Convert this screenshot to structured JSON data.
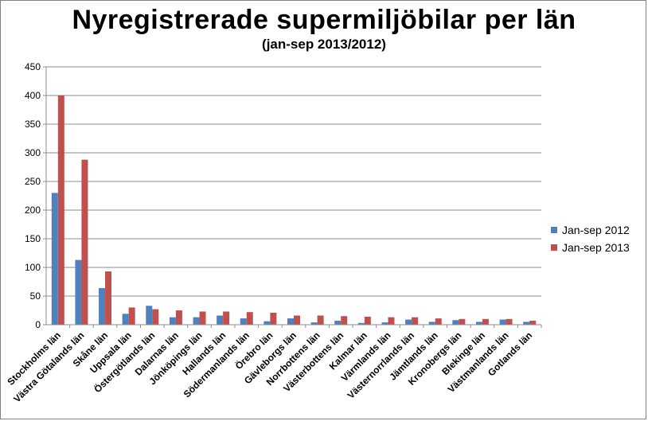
{
  "chart_data": {
    "type": "bar",
    "title": "Nyregistrerade supermiljöbilar per län",
    "subtitle": "(jan-sep 2013/2012)",
    "categories": [
      "Stockholms län",
      "Västra Götalands län",
      "Skåne län",
      "Uppsala län",
      "Östergötlands län",
      "Dalarnas län",
      "Jönköpings län",
      "Hallands län",
      "Södermanlands län",
      "Örebro län",
      "Gävleborgs län",
      "Norrbottens län",
      "Västerbottens län",
      "Kalmar län",
      "Värmlands län",
      "Västernorrlands län",
      "Jämtlands län",
      "Kronobergs län",
      "Blekinge län",
      "Västmanlands län",
      "Gotlands län"
    ],
    "series": [
      {
        "name": "Jan-sep 2012",
        "color": "#4f81bd",
        "values": [
          230,
          113,
          64,
          19,
          33,
          13,
          13,
          16,
          11,
          6,
          11,
          4,
          7,
          3,
          4,
          9,
          5,
          8,
          5,
          9,
          5
        ]
      },
      {
        "name": "Jan-sep 2013",
        "color": "#c0504d",
        "values": [
          400,
          288,
          93,
          30,
          27,
          25,
          23,
          23,
          22,
          21,
          16,
          16,
          15,
          14,
          13,
          13,
          11,
          10,
          10,
          10,
          7
        ]
      }
    ],
    "ylim": [
      0,
      450
    ],
    "yticks": [
      0,
      50,
      100,
      150,
      200,
      250,
      300,
      350,
      400,
      450
    ],
    "grid": true,
    "legend_position": "right"
  }
}
